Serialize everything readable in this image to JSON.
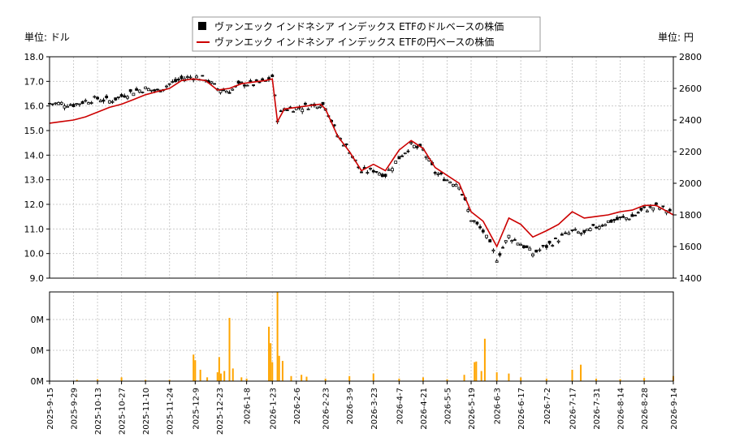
{
  "legend": {
    "usd_label": "ヴァンエック インドネシア インデックス ETFのドルベースの株価",
    "jpy_label": "ヴァンエック インドネシア インデックス ETFの円ベースの株価"
  },
  "axis_units": {
    "left": "単位: ドル",
    "right": "単位: 円"
  },
  "colors": {
    "usd_candle": "#000000",
    "jpy_line": "#cc0000",
    "volume_bar": "#ffa500"
  },
  "chart_data": [
    {
      "type": "candlestick+line",
      "x_type": "date",
      "x_range": [
        "2025-09-15",
        "2026-09-14"
      ],
      "x_ticks": [
        "2025-9-15",
        "2025-9-29",
        "2025-10-13",
        "2025-10-27",
        "2025-11-10",
        "2025-11-24",
        "2025-12-9",
        "2025-12-23",
        "2026-1-8",
        "2026-1-23",
        "2026-2-6",
        "2026-2-23",
        "2026-3-9",
        "2026-3-23",
        "2026-4-7",
        "2026-4-21",
        "2026-5-5",
        "2026-5-19",
        "2026-6-3",
        "2026-6-17",
        "2026-7-2",
        "2026-7-17",
        "2026-7-31",
        "2026-8-14",
        "2026-8-28",
        "2026-9-14"
      ],
      "y_left": {
        "ylim": [
          9.0,
          18.0
        ],
        "ticks": [
          "9.0",
          "10.0",
          "11.0",
          "12.0",
          "13.0",
          "14.0",
          "15.0",
          "16.0",
          "17.0",
          "18.0"
        ]
      },
      "y_right": {
        "ylim": [
          1400,
          2800
        ],
        "ticks": [
          "1400",
          "1600",
          "1800",
          "2000",
          "2200",
          "2400",
          "2600",
          "2800"
        ]
      },
      "grid": true,
      "series": [
        {
          "name": "ヴァンエック インドネシア インデックス ETFのドルベースの株価",
          "axis": "left",
          "points": [
            [
              "2025-09-15",
              16.1
            ],
            [
              "2025-09-22",
              16.1
            ],
            [
              "2025-09-29",
              16.05
            ],
            [
              "2025-10-06",
              16.2
            ],
            [
              "2025-10-13",
              16.3
            ],
            [
              "2025-10-20",
              16.2
            ],
            [
              "2025-10-27",
              16.4
            ],
            [
              "2025-11-03",
              16.6
            ],
            [
              "2025-11-10",
              16.7
            ],
            [
              "2025-11-17",
              16.6
            ],
            [
              "2025-11-24",
              16.9
            ],
            [
              "2025-12-01",
              17.1
            ],
            [
              "2025-12-08",
              17.2
            ],
            [
              "2025-12-15",
              17.1
            ],
            [
              "2025-12-22",
              16.7
            ],
            [
              "2025-12-29",
              16.6
            ],
            [
              "2026-01-05",
              16.9
            ],
            [
              "2026-01-12",
              16.9
            ],
            [
              "2026-01-19",
              17.0
            ],
            [
              "2026-01-23",
              17.2
            ],
            [
              "2026-01-26",
              15.5
            ],
            [
              "2026-01-30",
              15.9
            ],
            [
              "2026-02-06",
              15.9
            ],
            [
              "2026-02-13",
              16.0
            ],
            [
              "2026-02-20",
              16.1
            ],
            [
              "2026-02-23",
              16.0
            ],
            [
              "2026-03-02",
              14.8
            ],
            [
              "2026-03-09",
              14.2
            ],
            [
              "2026-03-16",
              13.3
            ],
            [
              "2026-03-23",
              13.4
            ],
            [
              "2026-03-30",
              13.2
            ],
            [
              "2026-04-07",
              13.9
            ],
            [
              "2026-04-14",
              14.4
            ],
            [
              "2026-04-21",
              14.2
            ],
            [
              "2026-04-28",
              13.3
            ],
            [
              "2026-05-05",
              13.0
            ],
            [
              "2026-05-12",
              12.8
            ],
            [
              "2026-05-19",
              11.4
            ],
            [
              "2026-05-26",
              10.9
            ],
            [
              "2026-06-03",
              9.8
            ],
            [
              "2026-06-10",
              10.7
            ],
            [
              "2026-06-17",
              10.4
            ],
            [
              "2026-06-24",
              10.0
            ],
            [
              "2026-07-02",
              10.3
            ],
            [
              "2026-07-09",
              10.6
            ],
            [
              "2026-07-17",
              10.9
            ],
            [
              "2026-07-24",
              10.8
            ],
            [
              "2026-07-31",
              11.1
            ],
            [
              "2026-08-07",
              11.3
            ],
            [
              "2026-08-14",
              11.4
            ],
            [
              "2026-08-21",
              11.5
            ],
            [
              "2026-08-28",
              11.8
            ],
            [
              "2026-09-04",
              11.9
            ],
            [
              "2026-09-14",
              11.7
            ]
          ]
        },
        {
          "name": "ヴァンエック インドネシア インデックス ETFの円ベースの株価",
          "axis": "right",
          "points": [
            [
              "2025-09-15",
              2380
            ],
            [
              "2025-09-22",
              2390
            ],
            [
              "2025-09-29",
              2400
            ],
            [
              "2025-10-06",
              2420
            ],
            [
              "2025-10-13",
              2450
            ],
            [
              "2025-10-20",
              2480
            ],
            [
              "2025-10-27",
              2500
            ],
            [
              "2025-11-03",
              2530
            ],
            [
              "2025-11-10",
              2560
            ],
            [
              "2025-11-17",
              2580
            ],
            [
              "2025-11-24",
              2600
            ],
            [
              "2025-12-01",
              2650
            ],
            [
              "2025-12-08",
              2660
            ],
            [
              "2025-12-15",
              2650
            ],
            [
              "2025-12-22",
              2590
            ],
            [
              "2025-12-29",
              2600
            ],
            [
              "2026-01-05",
              2630
            ],
            [
              "2026-01-12",
              2640
            ],
            [
              "2026-01-19",
              2650
            ],
            [
              "2026-01-23",
              2660
            ],
            [
              "2026-01-26",
              2390
            ],
            [
              "2026-01-30",
              2470
            ],
            [
              "2026-02-06",
              2480
            ],
            [
              "2026-02-13",
              2490
            ],
            [
              "2026-02-20",
              2500
            ],
            [
              "2026-02-23",
              2470
            ],
            [
              "2026-03-02",
              2300
            ],
            [
              "2026-03-09",
              2200
            ],
            [
              "2026-03-16",
              2080
            ],
            [
              "2026-03-23",
              2120
            ],
            [
              "2026-03-30",
              2080
            ],
            [
              "2026-04-07",
              2210
            ],
            [
              "2026-04-14",
              2270
            ],
            [
              "2026-04-21",
              2220
            ],
            [
              "2026-04-28",
              2100
            ],
            [
              "2026-05-05",
              2050
            ],
            [
              "2026-05-12",
              2000
            ],
            [
              "2026-05-19",
              1820
            ],
            [
              "2026-05-26",
              1760
            ],
            [
              "2026-06-03",
              1600
            ],
            [
              "2026-06-10",
              1780
            ],
            [
              "2026-06-17",
              1740
            ],
            [
              "2026-06-24",
              1660
            ],
            [
              "2026-07-02",
              1700
            ],
            [
              "2026-07-09",
              1740
            ],
            [
              "2026-07-17",
              1820
            ],
            [
              "2026-07-24",
              1780
            ],
            [
              "2026-07-31",
              1790
            ],
            [
              "2026-08-07",
              1800
            ],
            [
              "2026-08-14",
              1820
            ],
            [
              "2026-08-21",
              1830
            ],
            [
              "2026-08-28",
              1860
            ],
            [
              "2026-09-04",
              1860
            ],
            [
              "2026-09-14",
              1800
            ]
          ]
        }
      ]
    },
    {
      "type": "bar",
      "x_type": "date",
      "x_range": [
        "2025-09-15",
        "2026-09-14"
      ],
      "y_ticks": [
        "0M",
        "0M",
        "0M",
        "0M"
      ],
      "grid": true,
      "series": [
        {
          "name": "",
          "points": [
            [
              "2025-10-01",
              0.02
            ],
            [
              "2025-10-13",
              0.03
            ],
            [
              "2025-10-27",
              0.06
            ],
            [
              "2025-11-10",
              0.02
            ],
            [
              "2025-11-24",
              0.02
            ],
            [
              "2025-12-08",
              0.42
            ],
            [
              "2025-12-09",
              0.33
            ],
            [
              "2025-12-12",
              0.18
            ],
            [
              "2025-12-16",
              0.06
            ],
            [
              "2025-12-22",
              0.14
            ],
            [
              "2025-12-23",
              0.38
            ],
            [
              "2025-12-24",
              0.12
            ],
            [
              "2025-12-26",
              0.16
            ],
            [
              "2025-12-29",
              1.0
            ],
            [
              "2025-12-31",
              0.2
            ],
            [
              "2026-01-05",
              0.06
            ],
            [
              "2026-01-08",
              0.04
            ],
            [
              "2026-01-21",
              0.86
            ],
            [
              "2026-01-22",
              0.6
            ],
            [
              "2026-01-23",
              0.3
            ],
            [
              "2026-01-26",
              1.41
            ],
            [
              "2026-01-27",
              0.4
            ],
            [
              "2026-01-29",
              0.32
            ],
            [
              "2026-02-03",
              0.08
            ],
            [
              "2026-02-09",
              0.1
            ],
            [
              "2026-02-12",
              0.07
            ],
            [
              "2026-02-23",
              0.04
            ],
            [
              "2026-03-09",
              0.08
            ],
            [
              "2026-03-23",
              0.12
            ],
            [
              "2026-04-07",
              0.04
            ],
            [
              "2026-04-21",
              0.06
            ],
            [
              "2026-05-05",
              0.03
            ],
            [
              "2026-05-15",
              0.1
            ],
            [
              "2026-05-21",
              0.3
            ],
            [
              "2026-05-22",
              0.31
            ],
            [
              "2026-05-25",
              0.16
            ],
            [
              "2026-05-27",
              0.67
            ],
            [
              "2026-06-03",
              0.14
            ],
            [
              "2026-06-10",
              0.12
            ],
            [
              "2026-06-17",
              0.06
            ],
            [
              "2026-07-02",
              0.04
            ],
            [
              "2026-07-17",
              0.18
            ],
            [
              "2026-07-22",
              0.26
            ],
            [
              "2026-07-31",
              0.04
            ],
            [
              "2026-08-14",
              0.03
            ],
            [
              "2026-08-28",
              0.05
            ],
            [
              "2026-09-14",
              0.08
            ]
          ]
        }
      ]
    }
  ]
}
